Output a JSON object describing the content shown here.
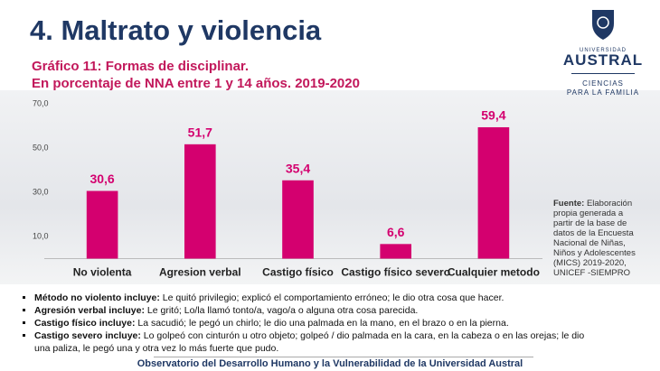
{
  "header": {
    "title": "4. Maltrato y violencia"
  },
  "logo": {
    "small": "UNIVERSIDAD",
    "name": "AUSTRAL",
    "line1": "CIENCIAS",
    "line2": "PARA LA FAMILIA"
  },
  "chart_data": {
    "type": "bar",
    "title": "Gráfico 11: Formas de disciplinar.",
    "subtitle": "En porcentaje de NNA entre 1 y 14 años. 2019-2020",
    "categories": [
      "No violenta",
      "Agresion verbal",
      "Castigo físico",
      "Castigo físico severo",
      "Cualquier metodo"
    ],
    "values": [
      30.6,
      51.7,
      35.4,
      6.6,
      59.4
    ],
    "value_labels": [
      "30,6",
      "51,7",
      "35,4",
      "6,6",
      "59,4"
    ],
    "color": "#d4006f",
    "ylim": [
      0,
      70
    ],
    "yticks": [
      {
        "value": 10,
        "label": "10,0"
      },
      {
        "value": 30,
        "label": "30,0"
      },
      {
        "value": 50,
        "label": "50,0"
      },
      {
        "value": 70,
        "label": "70,0"
      }
    ],
    "grid": false
  },
  "source": {
    "label": "Fuente:",
    "text": "Elaboración propia generada a partir de la base de datos de la Encuesta Nacional de Niñas, Niños y Adolescentes (MICS) 2019-2020, UNICEF -SIEMPRO"
  },
  "notes": [
    {
      "label": "Método no violento incluye:",
      "text": "Le quitó privilegio; explicó el comportamiento erróneo; le dio otra cosa que hacer."
    },
    {
      "label": "Agresión verbal incluye:",
      "text": "Le gritó; Lo/la llamó tonto/a, vago/a o alguna otra cosa parecida."
    },
    {
      "label": "Castigo físico incluye:",
      "text": "La sacudió; le pegó un chirlo; le dio una palmada en la mano, en el brazo o en la pierna."
    },
    {
      "label": "Castigo severo incluye:",
      "text": "Lo golpeó con cinturón u otro objeto; golpeó / dio palmada en la cara, en la cabeza o en  las orejas; le dio una paliza, le pegó una y otra vez lo más fuerte que pudo."
    }
  ],
  "footer": "Observatorio del Desarrollo Humano y la Vulnerabilidad de la Universidad Austral"
}
